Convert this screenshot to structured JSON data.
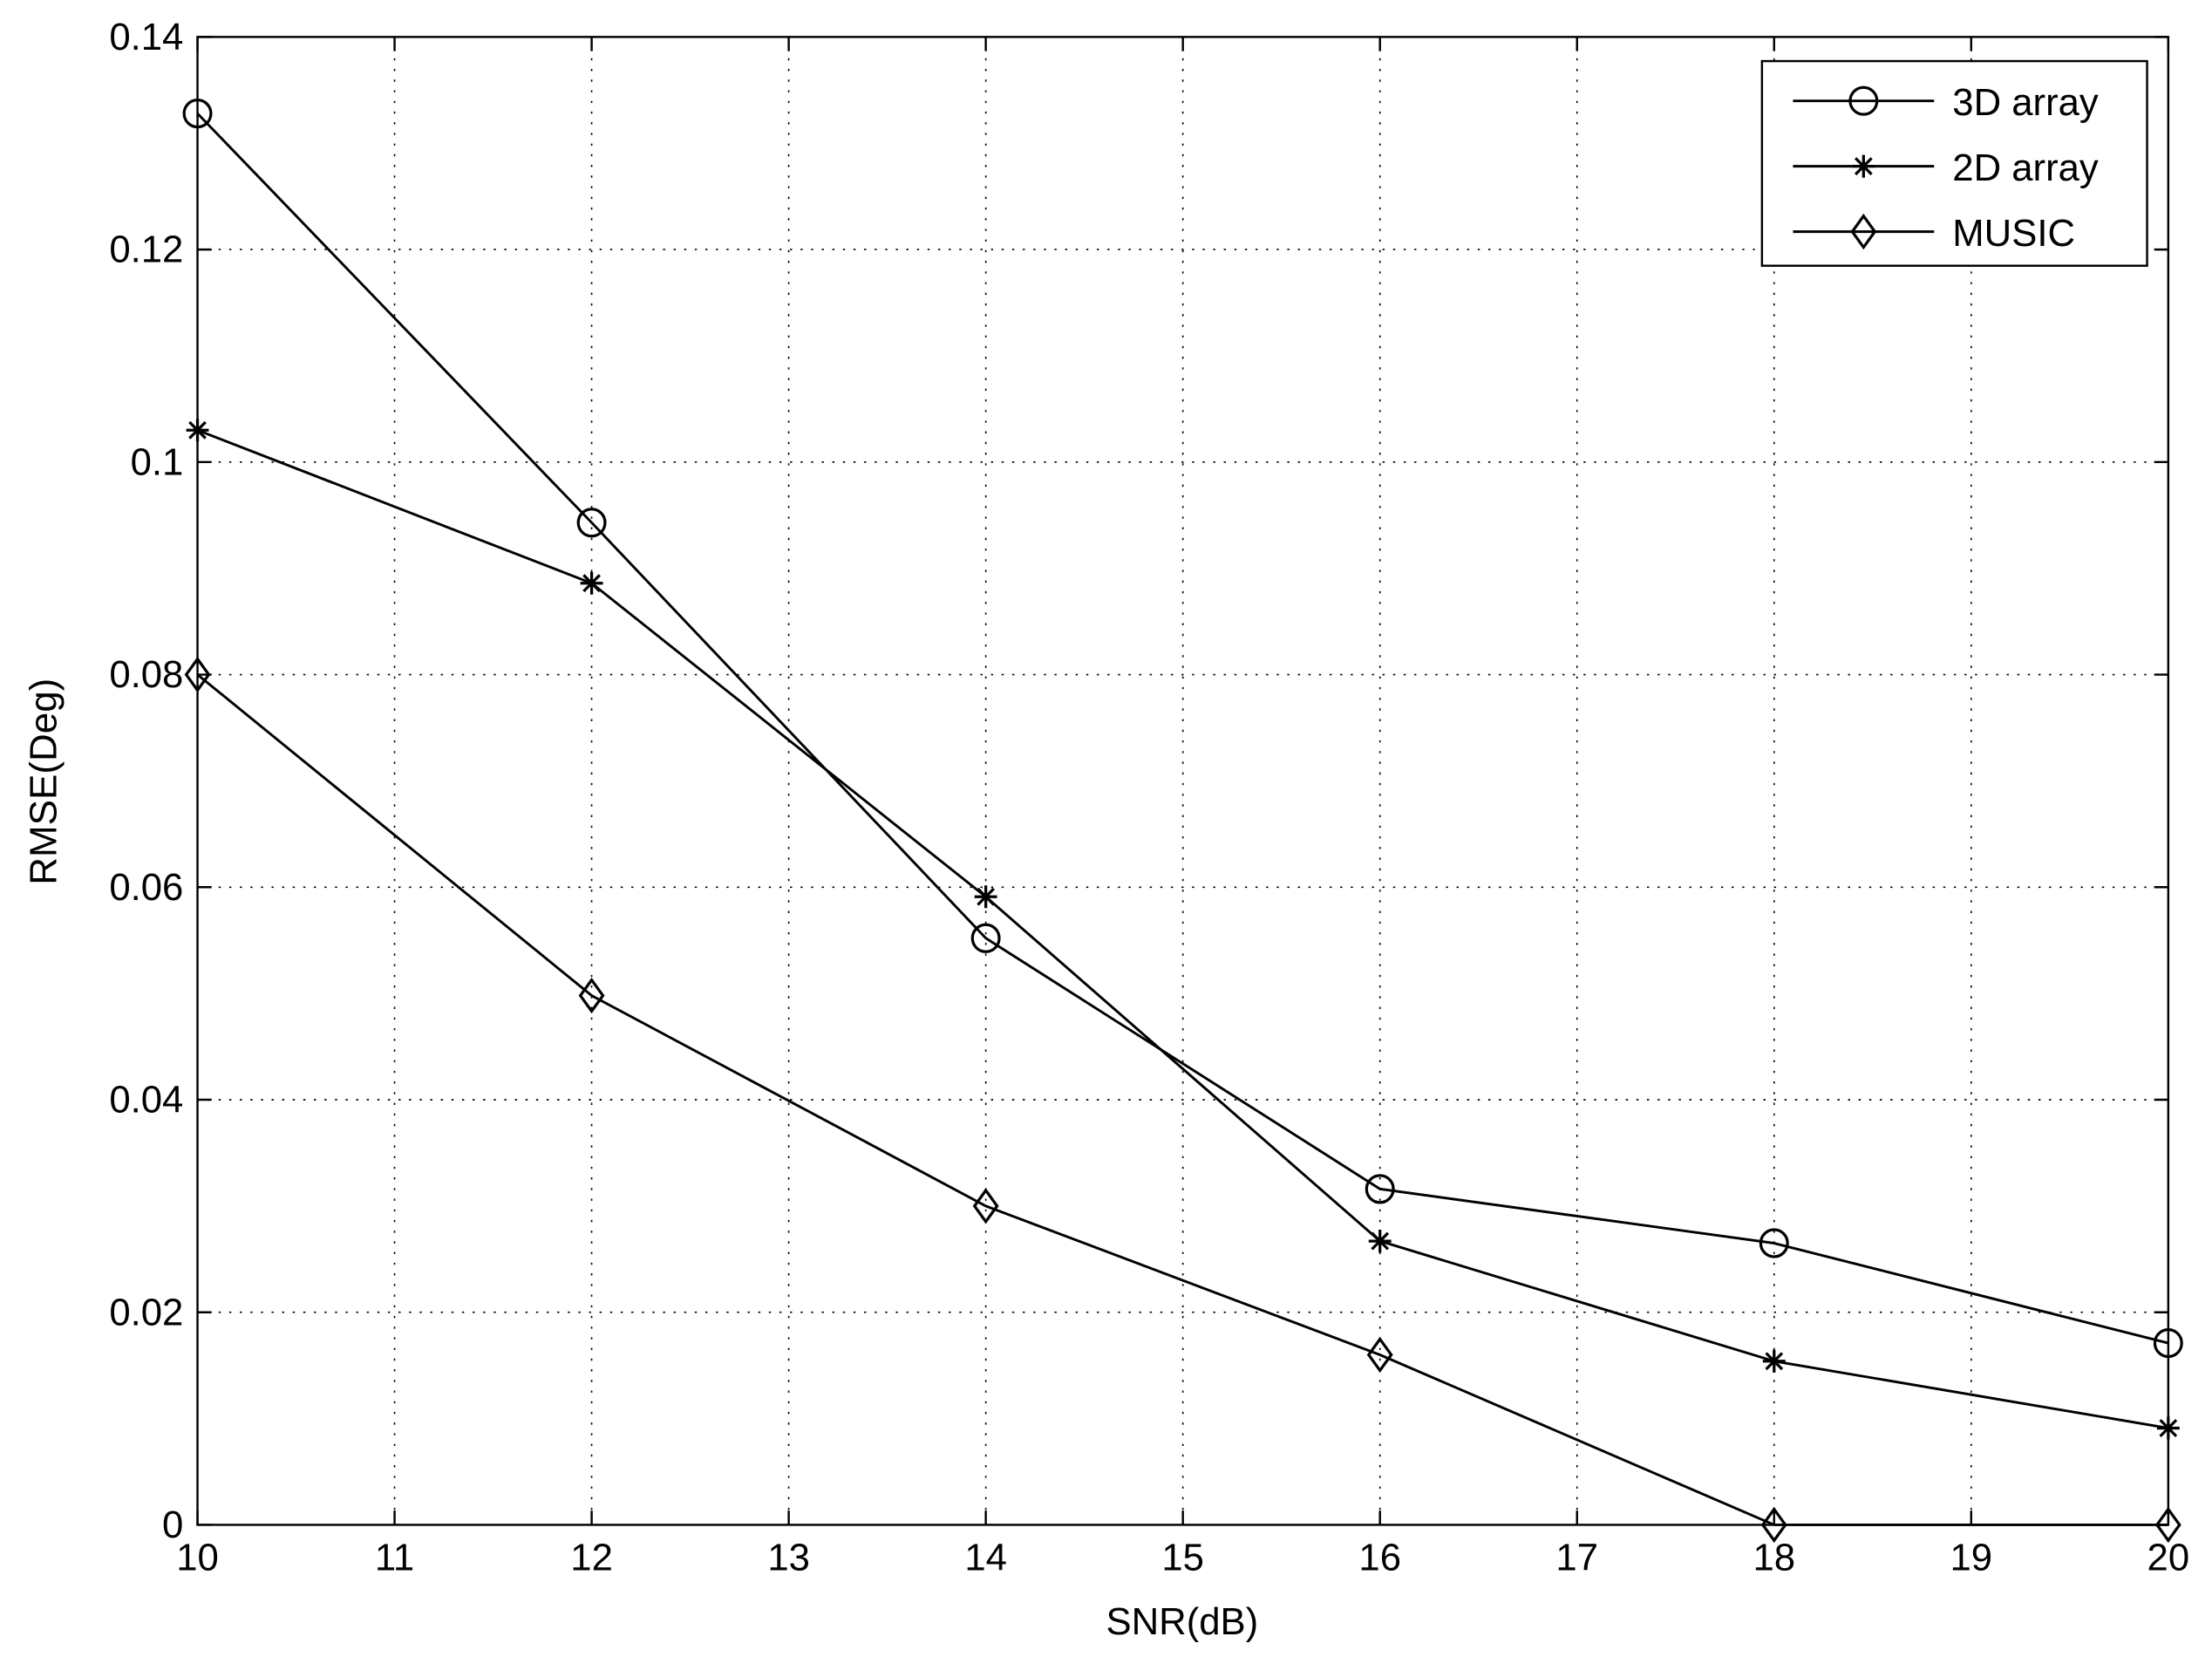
{
  "chart_data": {
    "type": "line",
    "x_label": "SNR(dB)",
    "y_label": "RMSE(Deg)",
    "x": [
      10,
      12,
      14,
      16,
      18,
      20
    ],
    "series": [
      {
        "name": "3D array",
        "color": "#000000",
        "marker": "circle",
        "values": [
          0.1328,
          0.0943,
          0.0552,
          0.0316,
          0.0265,
          0.0171
        ]
      },
      {
        "name": "2D array",
        "color": "#000000",
        "marker": "asterisk",
        "values": [
          0.103,
          0.0886,
          0.0591,
          0.0267,
          0.0154,
          0.0091
        ]
      },
      {
        "name": "MUSIC",
        "color": "#000000",
        "marker": "diamond",
        "values": [
          0.08,
          0.0498,
          0.03,
          0.016,
          0,
          0
        ]
      }
    ],
    "xlim": [
      10,
      20
    ],
    "xticks": [
      10,
      11,
      12,
      13,
      14,
      15,
      16,
      17,
      18,
      19,
      20
    ],
    "ylim": [
      0,
      0.14
    ],
    "yticks": [
      0,
      0.02,
      0.04,
      0.06,
      0.08,
      0.1,
      0.12,
      0.14
    ],
    "grid": true,
    "legend": "top-right"
  }
}
